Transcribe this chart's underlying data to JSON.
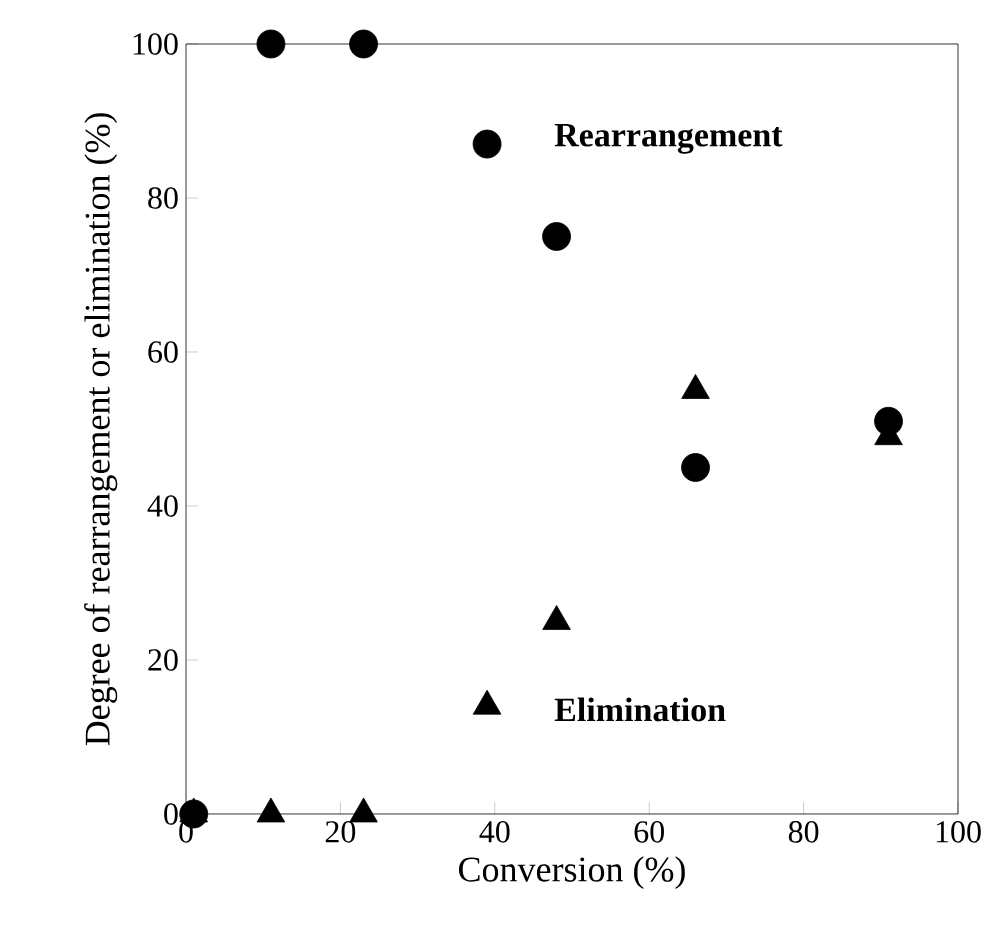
{
  "chart_data": {
    "type": "scatter",
    "xlabel": "Conversion (%)",
    "ylabel": "Degree of rearrangement or elimination  (%)",
    "xlim": [
      0,
      100
    ],
    "ylim": [
      0,
      100
    ],
    "xticks": [
      0,
      20,
      40,
      60,
      80,
      100
    ],
    "yticks": [
      0,
      20,
      40,
      60,
      80,
      100
    ],
    "grid": false,
    "legend": false,
    "series": [
      {
        "name": "Rearrangement",
        "color": "#000000",
        "marker": "circle",
        "x": [
          1,
          11,
          23,
          39,
          48,
          66,
          91
        ],
        "values": [
          0,
          100,
          100,
          87,
          75,
          45,
          51
        ]
      },
      {
        "name": "Elimination",
        "color": "#000000",
        "marker": "triangle",
        "x": [
          1,
          11,
          23,
          39,
          48,
          66,
          91
        ],
        "values": [
          0,
          0,
          0,
          14,
          25,
          55,
          49
        ]
      }
    ]
  }
}
